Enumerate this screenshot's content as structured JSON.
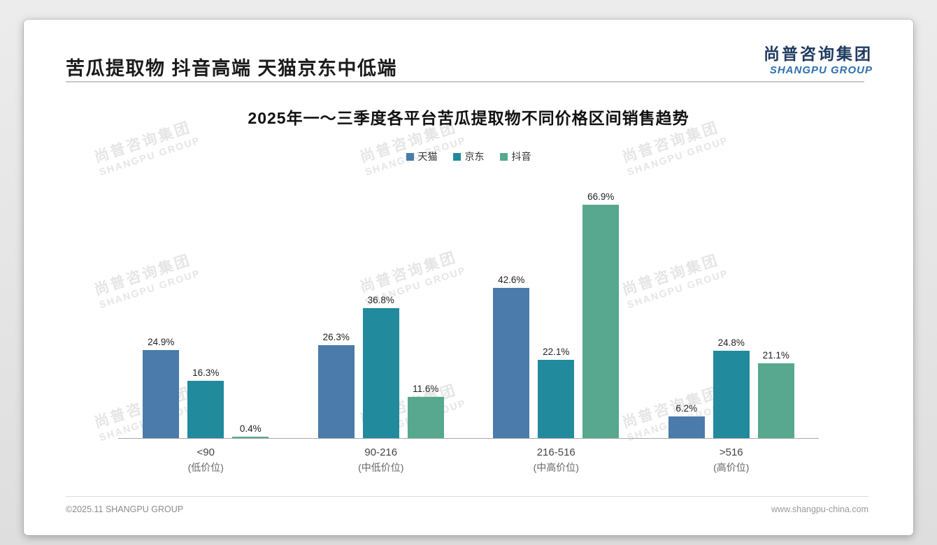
{
  "page": {
    "title": "苦瓜提取物 抖音高端 天猫京东中低端",
    "logo": {
      "cn": "尚普咨询集团",
      "en": "SHANGPU GROUP"
    },
    "watermark": {
      "cn": "尚普咨询集团",
      "en": "SHANGPU GROUP"
    },
    "footer_left": "©2025.11 SHANGPU GROUP",
    "footer_right": "www.shangpu-china.com"
  },
  "chart_data": {
    "type": "bar",
    "title": "2025年一～三季度各平台苦瓜提取物不同价格区间销售趋势",
    "categories": [
      "<90",
      "90-216",
      "216-516",
      ">516"
    ],
    "category_sublabels": [
      "(低价位)",
      "(中低价位)",
      "(中高价位)",
      "(高价位)"
    ],
    "series": [
      {
        "name": "天猫",
        "color": "#4A7BAA",
        "values": [
          24.9,
          26.3,
          42.6,
          6.2
        ]
      },
      {
        "name": "京东",
        "color": "#218A9D",
        "values": [
          16.3,
          36.8,
          22.1,
          24.8
        ]
      },
      {
        "name": "抖音",
        "color": "#57A88F",
        "values": [
          0.4,
          11.6,
          66.9,
          21.1
        ]
      }
    ],
    "value_suffix": "%",
    "xlabel": "",
    "ylabel": "",
    "ylim": [
      0,
      70
    ],
    "grid": false,
    "legend_position": "top",
    "value_labels": true
  }
}
